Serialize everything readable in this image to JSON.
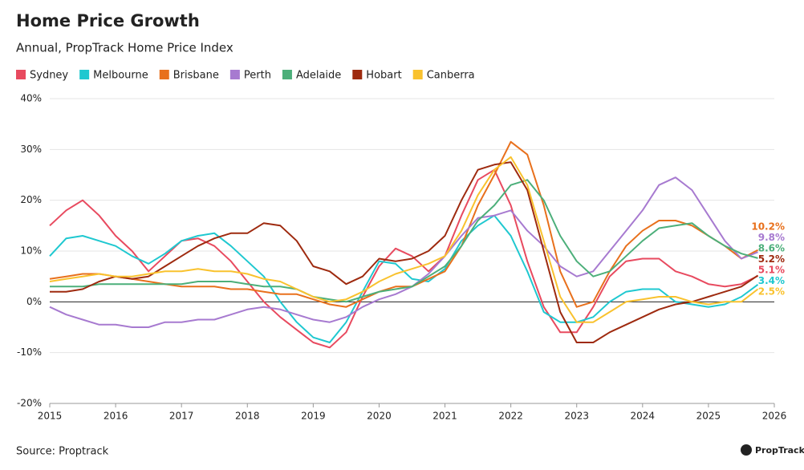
{
  "chart_data": {
    "type": "line",
    "title": "Home Price Growth",
    "subtitle": "Annual, PropTrack Home Price Index",
    "source": "Source: Proptrack",
    "logo": "PropTrack",
    "x": [
      2015,
      2015.25,
      2015.5,
      2015.75,
      2016,
      2016.25,
      2016.5,
      2016.75,
      2017,
      2017.25,
      2017.5,
      2017.75,
      2018,
      2018.25,
      2018.5,
      2018.75,
      2019,
      2019.25,
      2019.5,
      2019.75,
      2020,
      2020.25,
      2020.5,
      2020.75,
      2021,
      2021.25,
      2021.5,
      2021.75,
      2022,
      2022.25,
      2022.5,
      2022.75,
      2023,
      2023.25,
      2023.5,
      2023.75,
      2024,
      2024.25,
      2024.5,
      2024.75,
      2025,
      2025.25,
      2025.5,
      2025.75
    ],
    "xlim": [
      2015,
      2026
    ],
    "xticks": [
      2015,
      2016,
      2017,
      2018,
      2019,
      2020,
      2021,
      2022,
      2023,
      2024,
      2025,
      2026
    ],
    "ylim": [
      -20,
      40
    ],
    "yticks": [
      {
        "value": -20,
        "label": "-20%"
      },
      {
        "value": -10,
        "label": "-10%"
      },
      {
        "value": 0,
        "label": "0%"
      },
      {
        "value": 10,
        "label": "10%"
      },
      {
        "value": 20,
        "label": "20%"
      },
      {
        "value": 30,
        "label": "30%"
      },
      {
        "value": 40,
        "label": "40%"
      }
    ],
    "series": [
      {
        "name": "Sydney",
        "color": "#e84a5f",
        "last_label": "5.1%",
        "values": [
          15,
          18,
          20,
          17,
          13,
          10,
          6,
          9,
          12,
          12.5,
          11,
          8,
          4,
          0,
          -3,
          -5.5,
          -8,
          -9,
          -6,
          1,
          7,
          10.5,
          9,
          6,
          9,
          17,
          24,
          26,
          19,
          8,
          -1,
          -6,
          -6,
          -1,
          5,
          8,
          8.5,
          8.5,
          6,
          5,
          3.5,
          3,
          3.5,
          5.1
        ]
      },
      {
        "name": "Melbourne",
        "color": "#1fc8d0",
        "last_label": "3.4%",
        "values": [
          9,
          12.5,
          13,
          12,
          11,
          9,
          7.5,
          9.5,
          12,
          13,
          13.5,
          11,
          8,
          5,
          0,
          -4,
          -7,
          -8,
          -4,
          2,
          8,
          7.5,
          4.5,
          4,
          6.5,
          12,
          15,
          17,
          13,
          6,
          -2,
          -4,
          -4,
          -3,
          0,
          2,
          2.5,
          2.5,
          0,
          -0.5,
          -1,
          -0.5,
          1,
          3.4
        ]
      },
      {
        "name": "Brisbane",
        "color": "#e8701c",
        "last_label": "10.2%",
        "values": [
          4.5,
          5,
          5.5,
          5.5,
          5,
          4.5,
          4,
          3.5,
          3,
          3,
          3,
          2.5,
          2.5,
          2,
          1.5,
          1.5,
          0.5,
          -0.5,
          -1,
          0.5,
          2,
          3,
          3,
          4.5,
          6,
          11,
          19,
          25,
          31.5,
          29,
          19,
          6,
          -1,
          0,
          6,
          11,
          14,
          16,
          16,
          15,
          13,
          11,
          8.5,
          10.2
        ]
      },
      {
        "name": "Perth",
        "color": "#a77ad0",
        "last_label": "9.8%",
        "values": [
          -1,
          -2.5,
          -3.5,
          -4.5,
          -4.5,
          -5,
          -5,
          -4,
          -4,
          -3.5,
          -3.5,
          -2.5,
          -1.5,
          -1,
          -1.5,
          -2.5,
          -3.5,
          -4,
          -3,
          -1,
          0.5,
          1.5,
          3,
          5.5,
          9,
          13,
          16.5,
          17,
          18,
          14,
          11,
          7,
          5,
          6,
          10,
          14,
          18,
          23,
          24.5,
          22,
          17,
          12,
          8.5,
          9.8
        ]
      },
      {
        "name": "Adelaide",
        "color": "#4caf7a",
        "last_label": "8.6%",
        "values": [
          3,
          3,
          3,
          3.5,
          3.5,
          3.5,
          3.5,
          3.5,
          3.5,
          4,
          4,
          4,
          3.5,
          3,
          3,
          2.5,
          1,
          0.5,
          0,
          1,
          2,
          2.5,
          3,
          5,
          7,
          11,
          16,
          19,
          23,
          24,
          20,
          13,
          8,
          5,
          6,
          9,
          12,
          14.5,
          15,
          15.5,
          13,
          11,
          9.5,
          8.6
        ]
      },
      {
        "name": "Hobart",
        "color": "#9e2a0f",
        "last_label": "5.2%",
        "values": [
          2,
          2,
          2.5,
          4,
          5,
          4.5,
          5,
          7,
          9,
          11,
          12.5,
          13.5,
          13.5,
          15.5,
          15,
          12,
          7,
          6,
          3.5,
          5,
          8.5,
          8,
          8.5,
          10,
          13,
          20,
          26,
          27,
          27.5,
          22,
          10,
          -2,
          -8,
          -8,
          -6,
          -4.5,
          -3,
          -1.5,
          -0.5,
          0,
          1,
          2,
          3,
          5.2
        ]
      },
      {
        "name": "Canberra",
        "color": "#f9c22e",
        "last_label": "2.5%",
        "values": [
          4,
          4.5,
          5,
          5.5,
          5,
          5,
          5.5,
          6,
          6,
          6.5,
          6,
          6,
          5.5,
          4.5,
          4,
          2.5,
          1,
          0,
          0.5,
          2,
          4,
          5.5,
          6.5,
          7.5,
          9,
          14,
          21,
          26,
          28.5,
          23,
          12,
          1,
          -4,
          -4,
          -2,
          0,
          0.5,
          1,
          1,
          0,
          -0.5,
          0,
          0,
          2.5
        ]
      }
    ]
  }
}
